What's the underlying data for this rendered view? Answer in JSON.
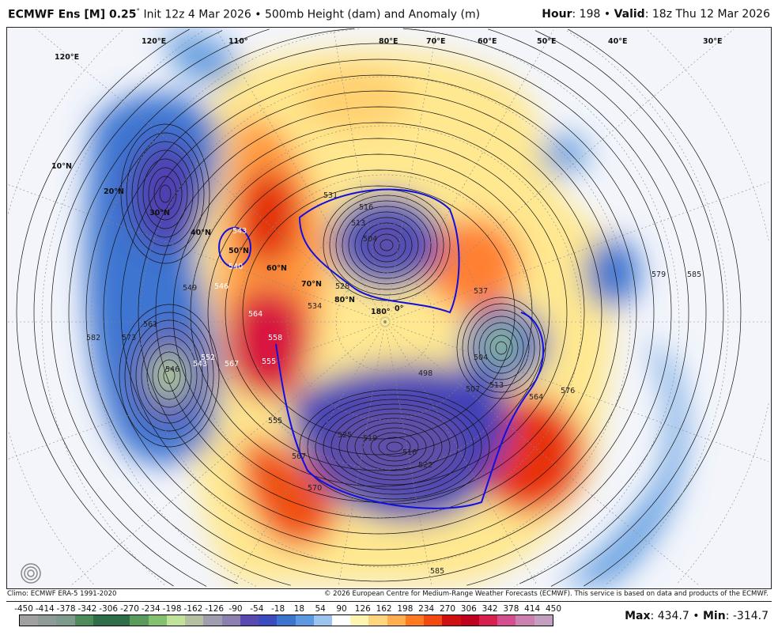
{
  "header": {
    "model": "ECMWF Ens [M] 0.25",
    "degree": "°",
    "init": "Init 12z 4 Mar 2026",
    "sep": "•",
    "product": "500mb Height (dam) and Anomaly (m)",
    "hour_label": "Hour",
    "hour": "198",
    "valid_label": "Valid",
    "valid": "18z Thu 12 Mar 2026"
  },
  "footer": {
    "climo": "Climo: ECMWF ERA-5 1991-2020",
    "copyright": "© 2026 European Centre for Medium-Range Weather Forecasts (ECMWF). This service is based on data and products of the ECMWF.",
    "max_label": "Max",
    "max": "434.7",
    "min_label": "Min",
    "min": "-314.7"
  },
  "logo": "WeatherBELL",
  "colorbar": {
    "ticks": [
      "-450",
      "-414",
      "-378",
      "-342",
      "-306",
      "-270",
      "-234",
      "-198",
      "-162",
      "-126",
      "-90",
      "-54",
      "-18",
      "18",
      "54",
      "90",
      "126",
      "162",
      "198",
      "234",
      "270",
      "306",
      "342",
      "378",
      "414",
      "450"
    ],
    "colors": [
      "#a0a0a0",
      "#8f9a99",
      "#7d9a8c",
      "#4f8a5a",
      "#2e6e48",
      "#2e6e48",
      "#5a9a5c",
      "#84c070",
      "#bfe39a",
      "#b4c0a0",
      "#9e9eae",
      "#8c80b0",
      "#5a4ab0",
      "#3b4cc0",
      "#3d74d0",
      "#5b9ae0",
      "#9cc4ee",
      "#ffffff",
      "#fff4b0",
      "#ffd680",
      "#ffae50",
      "#ff7a20",
      "#f24a10",
      "#d01010",
      "#c00020",
      "#d82050",
      "#d2508e",
      "#cc80b0",
      "#c4a0c0"
    ]
  },
  "map": {
    "lat_labels": [
      "10°N",
      "20°N",
      "30°N",
      "40°N",
      "50°N",
      "60°N",
      "70°N",
      "80°N"
    ],
    "lon_labels": [
      "180°",
      "0°",
      "120°E",
      "110°",
      "80°E",
      "70°E",
      "60°E",
      "50°E",
      "40°E",
      "30°E",
      "120°E"
    ],
    "contour_labels": [
      "504",
      "513",
      "516",
      "531",
      "537",
      "549",
      "573",
      "582",
      "561",
      "546",
      "543",
      "567",
      "564",
      "558",
      "555",
      "552",
      "546",
      "540",
      "543",
      "498",
      "504",
      "507",
      "513",
      "525",
      "519",
      "516",
      "522",
      "555",
      "567",
      "570",
      "585",
      "576",
      "564",
      "579",
      "585",
      "528",
      "534"
    ]
  }
}
